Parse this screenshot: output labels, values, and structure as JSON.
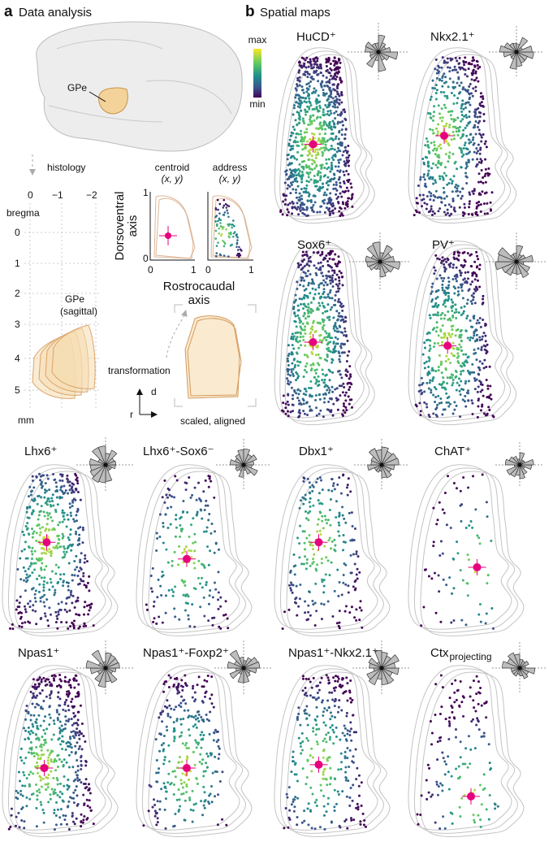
{
  "panel_a": {
    "label": "a",
    "title": "Data analysis",
    "region": "GPe",
    "step": "histology",
    "ap_ticks": [
      "0",
      "−1",
      "−2"
    ],
    "reference": "bregma",
    "dv_ticks": [
      "0",
      "1",
      "2",
      "3",
      "4",
      "5"
    ],
    "unit": "mm",
    "section": [
      "GPe",
      "(sagittal)"
    ],
    "insets": [
      {
        "title": "centroid",
        "coords": "(x, y)"
      },
      {
        "title": "address",
        "coords": "(x, y)"
      }
    ],
    "inset_ticks": [
      "0",
      "1"
    ],
    "y_axis_label": [
      "Dorsoventral",
      "axis"
    ],
    "x_axis_label": [
      "Rostrocaudal",
      "axis"
    ],
    "transform": "transformation",
    "dir_d": "d",
    "dir_r": "r",
    "result": "scaled, aligned"
  },
  "panel_b": {
    "label": "b",
    "title": "Spatial maps",
    "scale_max": "max",
    "scale_min": "min",
    "maps": [
      {
        "name": "HuCD⁺"
      },
      {
        "name": "Nkx2.1⁺"
      },
      {
        "name": "Sox6⁺"
      },
      {
        "name": "PV⁺"
      },
      {
        "name": "Lhx6⁺"
      },
      {
        "name": "Lhx6⁺-Sox6⁻"
      },
      {
        "name": "Dbx1⁺"
      },
      {
        "name": "ChAT⁺"
      },
      {
        "name": "Npas1⁺"
      },
      {
        "name": "Npas1⁺-Foxp2⁺"
      },
      {
        "name": "Npas1⁺-Nkx2.1⁺"
      },
      {
        "name": "Ctx",
        "subscript": "projecting"
      }
    ]
  }
}
